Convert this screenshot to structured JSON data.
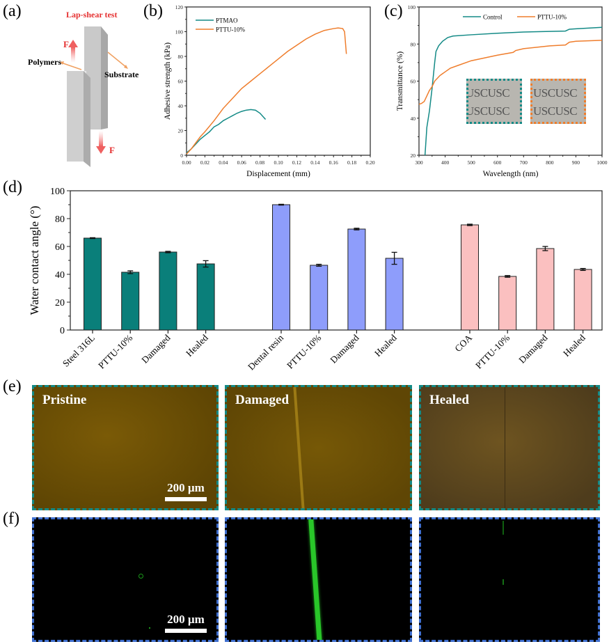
{
  "panels": {
    "a": {
      "label": "(a)",
      "title": "Lap-shear test",
      "force_top": "F",
      "force_bottom": "F",
      "polymers": "Polymers",
      "substrate": "Substrate"
    },
    "b": {
      "label": "(b)"
    },
    "c": {
      "label": "(c)",
      "insets": [
        {
          "text1": "USCUSC",
          "text2": "USCUSC",
          "border_color": "#138a86"
        },
        {
          "text1": "USCUSC",
          "text2": "USCUSC",
          "border_color": "#ef7d2c"
        }
      ]
    },
    "d": {
      "label": "(d)"
    },
    "e": {
      "label": "(e)",
      "images": [
        {
          "title": "Pristine",
          "scale": "200 µm"
        },
        {
          "title": "Damaged"
        },
        {
          "title": "Healed"
        }
      ]
    },
    "f": {
      "label": "(f)",
      "images": [
        {
          "scale": "200 µm"
        },
        {},
        {}
      ]
    }
  },
  "colors": {
    "teal": "#138a86",
    "orange": "#ef7d2c",
    "teal_bar": "#0a7f7a",
    "blue_bar": "#8e9dfb",
    "pink_bar": "#fbc0c0"
  },
  "chart_data": [
    {
      "id": "b",
      "type": "line",
      "xlabel": "Displacement (mm)",
      "ylabel": "Adhesive strength (kPa)",
      "xlim": [
        0,
        0.2
      ],
      "ylim": [
        0,
        120
      ],
      "xticks": [
        "0.00",
        "0.02",
        "0.04",
        "0.06",
        "0.08",
        "0.10",
        "0.12",
        "0.14",
        "0.16",
        "0.18",
        "0.20"
      ],
      "yticks": [
        "0",
        "20",
        "40",
        "60",
        "80",
        "100",
        "120"
      ],
      "legend": "top-left",
      "series": [
        {
          "name": "PTMAO",
          "color": "#138a86",
          "x": [
            0,
            0.005,
            0.01,
            0.015,
            0.02,
            0.025,
            0.03,
            0.035,
            0.04,
            0.045,
            0.05,
            0.055,
            0.06,
            0.065,
            0.07,
            0.075,
            0.08,
            0.086
          ],
          "y": [
            2,
            5,
            9,
            13,
            16,
            19,
            23,
            25,
            28,
            30,
            32,
            34,
            35.5,
            36.5,
            37,
            36.5,
            34,
            29
          ]
        },
        {
          "name": "PTTU-10%",
          "color": "#ef7d2c",
          "x": [
            0,
            0.005,
            0.01,
            0.015,
            0.02,
            0.03,
            0.04,
            0.05,
            0.06,
            0.07,
            0.08,
            0.09,
            0.1,
            0.11,
            0.12,
            0.13,
            0.14,
            0.15,
            0.16,
            0.165,
            0.17,
            0.172,
            0.174
          ],
          "y": [
            1,
            5,
            10,
            15,
            19,
            28,
            38,
            46,
            54,
            60,
            66,
            72,
            78,
            84,
            89,
            94,
            98,
            101,
            102.5,
            103,
            102.5,
            100,
            82
          ]
        }
      ]
    },
    {
      "id": "c",
      "type": "line",
      "xlabel": "Wavelength (nm)",
      "ylabel": "Transmittance (%)",
      "xlim": [
        300,
        1000
      ],
      "ylim": [
        20,
        100
      ],
      "xticks": [
        "300",
        "400",
        "500",
        "600",
        "700",
        "800",
        "900",
        "1000"
      ],
      "yticks": [
        "20",
        "40",
        "60",
        "80",
        "100"
      ],
      "legend": "top",
      "series": [
        {
          "name": "Control",
          "color": "#138a86",
          "x": [
            323,
            330,
            340,
            350,
            360,
            365,
            375,
            390,
            410,
            430,
            500,
            600,
            700,
            800,
            860,
            875,
            900,
            1000
          ],
          "y": [
            20,
            35,
            44,
            56,
            70,
            76,
            79,
            81.5,
            83.5,
            84.3,
            85,
            85.8,
            86.5,
            86.8,
            87,
            88,
            88.2,
            89
          ]
        },
        {
          "name": "PTTU-10%",
          "color": "#ef7d2c",
          "x": [
            300,
            310,
            320,
            330,
            340,
            350,
            360,
            380,
            400,
            420,
            450,
            500,
            550,
            600,
            660,
            670,
            700,
            800,
            860,
            875,
            900,
            1000
          ],
          "y": [
            47.5,
            48,
            49,
            52,
            55,
            57,
            60,
            63,
            65,
            67,
            68.5,
            71,
            72.5,
            74,
            75.5,
            76.5,
            77.5,
            79,
            79.5,
            81,
            81.5,
            82
          ]
        }
      ]
    },
    {
      "id": "d",
      "type": "bar",
      "ylabel": "Water contact angle (°)",
      "ylim": [
        0,
        100
      ],
      "yticks": [
        "0",
        "20",
        "40",
        "60",
        "80",
        "100"
      ],
      "categories": [
        "Steel 316L",
        "PTTU-10%",
        "Damaged",
        "Healed",
        "Dental resin",
        "PTTU-10%",
        "Damaged",
        "Healed",
        "COA",
        "PTTU-10%",
        "Damaged",
        "Healed"
      ],
      "groups": [
        0,
        0,
        0,
        0,
        1,
        1,
        1,
        1,
        2,
        2,
        2,
        2
      ],
      "values": [
        66,
        41.5,
        56,
        47.5,
        90,
        46.5,
        72.5,
        51.5,
        75.5,
        38.5,
        58.5,
        43.5
      ],
      "errors": [
        0.3,
        1,
        0.5,
        2.3,
        0.3,
        0.7,
        0.6,
        4.3,
        0.5,
        0.6,
        1.5,
        0.7
      ]
    }
  ]
}
